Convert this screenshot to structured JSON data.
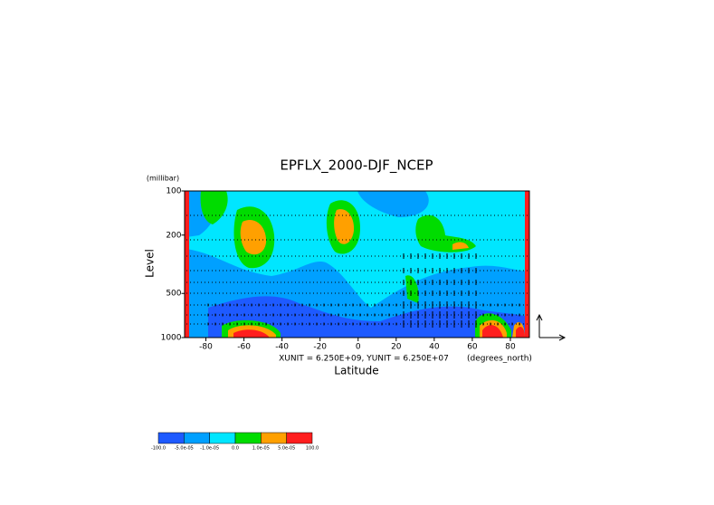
{
  "chart_data": {
    "type": "contour",
    "title": "EPFLX_2000-DJF_NCEP",
    "y_unit_label": "(millibar)",
    "ylabel": "Level",
    "xlabel": "Latitude",
    "x_unit_label": "(degrees_north)",
    "vector_scale_label": "XUNIT = 6.250E+09, YUNIT = 6.250E+07",
    "xlim": [
      -90,
      90
    ],
    "xticks": [
      -80,
      -60,
      -40,
      -20,
      0,
      20,
      40,
      60,
      80
    ],
    "ylim": [
      1000,
      100
    ],
    "yticks": [
      100,
      200,
      500,
      1000
    ],
    "log_y": true,
    "colors": [
      "#1e5aff",
      "#00a0ff",
      "#00e6ff",
      "#00dc00",
      "#ffa000",
      "#ff1e1e"
    ],
    "color_labels": [
      "-100.0",
      "-5.0e-05",
      "-1.0e-05",
      "0.0",
      "1.0e-05",
      "5.0e-05",
      "100.0"
    ]
  }
}
